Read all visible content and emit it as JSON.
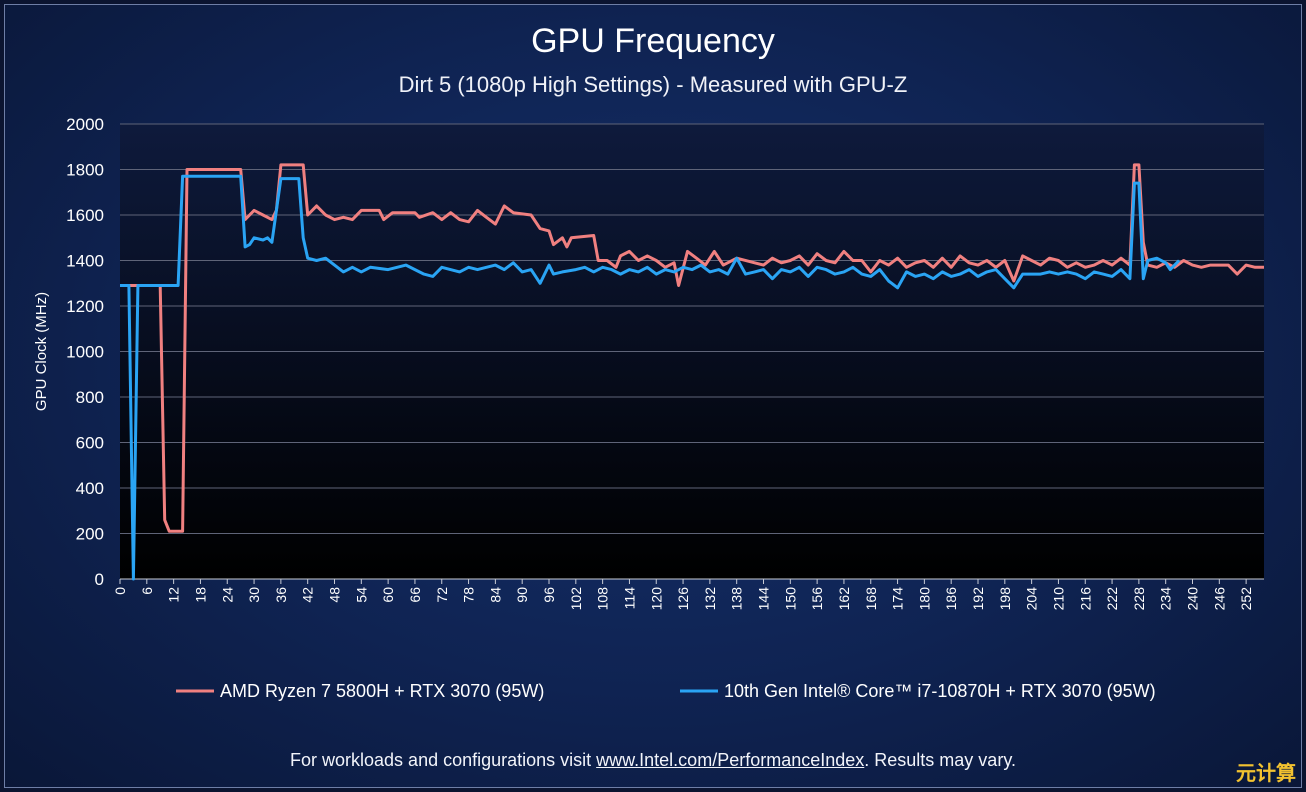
{
  "chart_data": {
    "type": "line",
    "title": "GPU Frequency",
    "subtitle": "Dirt 5 (1080p High Settings) -  Measured with GPU-Z",
    "ylabel": "GPU Clock (MHz)",
    "xlabel": "",
    "xlim": [
      0,
      256
    ],
    "ylim": [
      0,
      2000
    ],
    "yticks": [
      "0",
      "200",
      "400",
      "600",
      "800",
      "1000",
      "1200",
      "1400",
      "1600",
      "1800",
      "2000"
    ],
    "xticks": [
      "0",
      "6",
      "12",
      "18",
      "24",
      "30",
      "36",
      "42",
      "48",
      "54",
      "60",
      "66",
      "72",
      "78",
      "84",
      "90",
      "96",
      "102",
      "108",
      "114",
      "120",
      "126",
      "132",
      "138",
      "144",
      "150",
      "156",
      "162",
      "168",
      "174",
      "180",
      "186",
      "192",
      "198",
      "204",
      "210",
      "216",
      "222",
      "228",
      "234",
      "240",
      "246",
      "252"
    ],
    "grid": true,
    "legend_position": "bottom",
    "series": [
      {
        "name": "AMD Ryzen 7 5800H + RTX 3070 (95W)",
        "color": "#f08080",
        "points": [
          [
            0,
            1290
          ],
          [
            9,
            1290
          ],
          [
            10,
            260
          ],
          [
            11,
            210
          ],
          [
            14,
            210
          ],
          [
            15,
            1800
          ],
          [
            27,
            1800
          ],
          [
            28,
            1580
          ],
          [
            29,
            1600
          ],
          [
            30,
            1620
          ],
          [
            32,
            1600
          ],
          [
            34,
            1580
          ],
          [
            35,
            1620
          ],
          [
            36,
            1820
          ],
          [
            41,
            1820
          ],
          [
            42,
            1600
          ],
          [
            44,
            1640
          ],
          [
            46,
            1600
          ],
          [
            48,
            1580
          ],
          [
            50,
            1590
          ],
          [
            52,
            1580
          ],
          [
            54,
            1620
          ],
          [
            58,
            1620
          ],
          [
            59,
            1580
          ],
          [
            61,
            1610
          ],
          [
            66,
            1610
          ],
          [
            67,
            1590
          ],
          [
            70,
            1610
          ],
          [
            72,
            1580
          ],
          [
            74,
            1610
          ],
          [
            76,
            1580
          ],
          [
            78,
            1570
          ],
          [
            80,
            1620
          ],
          [
            82,
            1590
          ],
          [
            84,
            1560
          ],
          [
            86,
            1640
          ],
          [
            88,
            1610
          ],
          [
            92,
            1600
          ],
          [
            94,
            1540
          ],
          [
            96,
            1530
          ],
          [
            97,
            1470
          ],
          [
            99,
            1500
          ],
          [
            100,
            1460
          ],
          [
            101,
            1500
          ],
          [
            106,
            1510
          ],
          [
            107,
            1400
          ],
          [
            109,
            1400
          ],
          [
            111,
            1370
          ],
          [
            112,
            1420
          ],
          [
            114,
            1440
          ],
          [
            116,
            1400
          ],
          [
            118,
            1420
          ],
          [
            120,
            1400
          ],
          [
            122,
            1370
          ],
          [
            124,
            1390
          ],
          [
            125,
            1290
          ],
          [
            127,
            1440
          ],
          [
            129,
            1410
          ],
          [
            131,
            1380
          ],
          [
            133,
            1440
          ],
          [
            135,
            1380
          ],
          [
            138,
            1410
          ],
          [
            142,
            1390
          ],
          [
            144,
            1380
          ],
          [
            146,
            1410
          ],
          [
            148,
            1390
          ],
          [
            150,
            1400
          ],
          [
            152,
            1420
          ],
          [
            154,
            1380
          ],
          [
            156,
            1430
          ],
          [
            158,
            1400
          ],
          [
            160,
            1390
          ],
          [
            162,
            1440
          ],
          [
            164,
            1400
          ],
          [
            166,
            1400
          ],
          [
            168,
            1350
          ],
          [
            170,
            1400
          ],
          [
            172,
            1380
          ],
          [
            174,
            1410
          ],
          [
            176,
            1370
          ],
          [
            178,
            1390
          ],
          [
            180,
            1400
          ],
          [
            182,
            1370
          ],
          [
            184,
            1410
          ],
          [
            186,
            1370
          ],
          [
            188,
            1420
          ],
          [
            190,
            1390
          ],
          [
            192,
            1380
          ],
          [
            194,
            1400
          ],
          [
            196,
            1370
          ],
          [
            198,
            1400
          ],
          [
            200,
            1310
          ],
          [
            202,
            1420
          ],
          [
            204,
            1400
          ],
          [
            206,
            1380
          ],
          [
            208,
            1410
          ],
          [
            210,
            1400
          ],
          [
            212,
            1370
          ],
          [
            214,
            1390
          ],
          [
            216,
            1370
          ],
          [
            218,
            1380
          ],
          [
            220,
            1400
          ],
          [
            222,
            1380
          ],
          [
            224,
            1410
          ],
          [
            226,
            1380
          ],
          [
            227,
            1820
          ],
          [
            228,
            1820
          ],
          [
            229,
            1480
          ],
          [
            230,
            1380
          ],
          [
            232,
            1370
          ],
          [
            234,
            1390
          ],
          [
            236,
            1370
          ],
          [
            238,
            1400
          ],
          [
            240,
            1380
          ],
          [
            242,
            1370
          ],
          [
            244,
            1380
          ],
          [
            248,
            1380
          ],
          [
            250,
            1340
          ],
          [
            252,
            1380
          ],
          [
            254,
            1370
          ],
          [
            256,
            1370
          ]
        ]
      },
      {
        "name": "10th Gen Intel® Core™ i7-10870H + RTX 3070 (95W)",
        "color": "#2aa4f4",
        "points": [
          [
            0,
            1290
          ],
          [
            2,
            1290
          ],
          [
            3,
            0
          ],
          [
            4,
            1290
          ],
          [
            13,
            1290
          ],
          [
            14,
            1770
          ],
          [
            27,
            1770
          ],
          [
            28,
            1460
          ],
          [
            29,
            1470
          ],
          [
            30,
            1500
          ],
          [
            32,
            1490
          ],
          [
            33,
            1500
          ],
          [
            34,
            1480
          ],
          [
            35,
            1620
          ],
          [
            36,
            1760
          ],
          [
            40,
            1760
          ],
          [
            41,
            1500
          ],
          [
            42,
            1410
          ],
          [
            44,
            1400
          ],
          [
            46,
            1410
          ],
          [
            48,
            1380
          ],
          [
            50,
            1350
          ],
          [
            52,
            1370
          ],
          [
            54,
            1350
          ],
          [
            56,
            1370
          ],
          [
            60,
            1360
          ],
          [
            62,
            1370
          ],
          [
            64,
            1380
          ],
          [
            66,
            1360
          ],
          [
            68,
            1340
          ],
          [
            70,
            1330
          ],
          [
            72,
            1370
          ],
          [
            76,
            1350
          ],
          [
            78,
            1370
          ],
          [
            80,
            1360
          ],
          [
            82,
            1370
          ],
          [
            84,
            1380
          ],
          [
            86,
            1360
          ],
          [
            88,
            1390
          ],
          [
            90,
            1350
          ],
          [
            92,
            1360
          ],
          [
            94,
            1300
          ],
          [
            96,
            1380
          ],
          [
            97,
            1340
          ],
          [
            99,
            1350
          ],
          [
            102,
            1360
          ],
          [
            104,
            1370
          ],
          [
            106,
            1350
          ],
          [
            108,
            1370
          ],
          [
            110,
            1360
          ],
          [
            112,
            1340
          ],
          [
            114,
            1360
          ],
          [
            116,
            1350
          ],
          [
            118,
            1370
          ],
          [
            120,
            1340
          ],
          [
            122,
            1360
          ],
          [
            124,
            1350
          ],
          [
            126,
            1370
          ],
          [
            128,
            1360
          ],
          [
            130,
            1380
          ],
          [
            132,
            1350
          ],
          [
            134,
            1360
          ],
          [
            136,
            1340
          ],
          [
            138,
            1410
          ],
          [
            140,
            1340
          ],
          [
            142,
            1350
          ],
          [
            144,
            1360
          ],
          [
            146,
            1320
          ],
          [
            148,
            1360
          ],
          [
            150,
            1350
          ],
          [
            152,
            1370
          ],
          [
            154,
            1330
          ],
          [
            156,
            1370
          ],
          [
            158,
            1360
          ],
          [
            160,
            1340
          ],
          [
            162,
            1350
          ],
          [
            164,
            1370
          ],
          [
            166,
            1340
          ],
          [
            168,
            1330
          ],
          [
            170,
            1360
          ],
          [
            172,
            1310
          ],
          [
            174,
            1280
          ],
          [
            176,
            1350
          ],
          [
            178,
            1330
          ],
          [
            180,
            1340
          ],
          [
            182,
            1320
          ],
          [
            184,
            1350
          ],
          [
            186,
            1330
          ],
          [
            188,
            1340
          ],
          [
            190,
            1360
          ],
          [
            192,
            1330
          ],
          [
            194,
            1350
          ],
          [
            196,
            1360
          ],
          [
            198,
            1320
          ],
          [
            200,
            1280
          ],
          [
            202,
            1340
          ],
          [
            206,
            1340
          ],
          [
            208,
            1350
          ],
          [
            210,
            1340
          ],
          [
            212,
            1350
          ],
          [
            214,
            1340
          ],
          [
            216,
            1320
          ],
          [
            218,
            1350
          ],
          [
            220,
            1340
          ],
          [
            222,
            1330
          ],
          [
            224,
            1360
          ],
          [
            226,
            1320
          ],
          [
            227,
            1740
          ],
          [
            228,
            1740
          ],
          [
            229,
            1320
          ],
          [
            230,
            1400
          ],
          [
            232,
            1410
          ],
          [
            234,
            1390
          ],
          [
            235,
            1360
          ],
          [
            236,
            1380
          ],
          [
            237,
            1400
          ]
        ]
      }
    ]
  },
  "footer": {
    "prefix": "For workloads and configurations visit ",
    "link": "www.Intel.com/PerformanceIndex",
    "suffix": ". Results may vary."
  },
  "watermark": "元计算"
}
